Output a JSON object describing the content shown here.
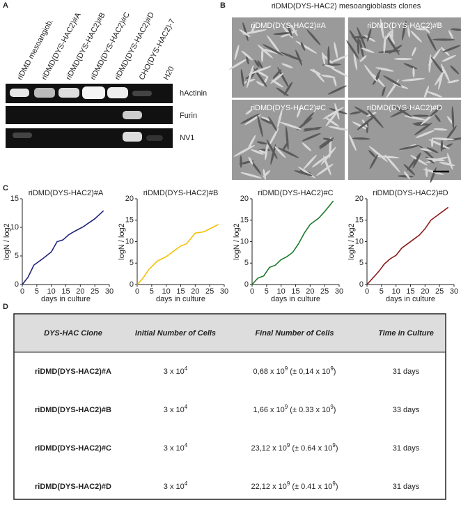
{
  "panel_labels": [
    "A",
    "B",
    "C",
    "D"
  ],
  "panel_a": {
    "lanes": [
      "riDMD mesoangiob.",
      "riDMD(DYS-HAC2)#A",
      "riDMD(DYS-HAC2)#B",
      "riDMD(DYS-HAC2)#C",
      "riDMD(DYS-HAC2)#D",
      "CHO(DYS-HAC2)-7",
      "H20"
    ],
    "bands": [
      "hActinin",
      "Furin",
      "NV1"
    ]
  },
  "panel_b": {
    "title": "riDMD(DYS-HAC2) mesoangioblasts clones",
    "clones": [
      "riDMD(DYS-HAC2)#A",
      "riDMD(DYS-HAC2)#B",
      "riDMD(DYS-HAC2)#C",
      "riDMD(DYS-HAC2)#D"
    ]
  },
  "chart_data": [
    {
      "type": "line",
      "title": "riDMD(DYS-HAC2)#A",
      "xlabel": "days in culture",
      "ylabel": "logN / log2",
      "color": "#1f237a",
      "x": [
        0,
        2,
        4,
        7,
        10,
        12,
        14,
        16,
        18,
        21,
        23,
        25,
        28
      ],
      "values": [
        0,
        1.3,
        3.4,
        4.5,
        5.7,
        7.5,
        7.8,
        8.7,
        9.3,
        10.1,
        10.8,
        11.5,
        12.9
      ],
      "xlim": [
        0,
        30
      ],
      "ylim": [
        0,
        15
      ],
      "xticks": [
        0,
        5,
        10,
        15,
        20,
        25,
        30
      ],
      "yticks": [
        0,
        5,
        10,
        15
      ]
    },
    {
      "type": "line",
      "title": "riDMD(DYS-HAC2)#B",
      "xlabel": "days in culture",
      "ylabel": "logN / log2",
      "color": "#f2c200",
      "x": [
        0,
        2,
        4,
        7,
        10,
        12,
        15,
        17,
        20,
        23,
        28
      ],
      "values": [
        0,
        1.5,
        3.5,
        5.5,
        6.5,
        7.5,
        9,
        9.5,
        12,
        12.3,
        14
      ],
      "xlim": [
        0,
        30
      ],
      "ylim": [
        0,
        20
      ],
      "xticks": [
        0,
        5,
        10,
        15,
        20,
        25,
        30
      ],
      "yticks": [
        0,
        5,
        10,
        15,
        20
      ]
    },
    {
      "type": "line",
      "title": "riDMD(DYS-HAC2)#C",
      "xlabel": "days in culture",
      "ylabel": "logN / log2",
      "color": "#1a7a2a",
      "x": [
        0,
        2,
        4,
        6,
        8,
        10,
        12,
        14,
        16,
        18,
        20,
        23,
        25,
        28
      ],
      "values": [
        0,
        1.5,
        2,
        4,
        4.5,
        5.8,
        6.5,
        7.5,
        9.5,
        12,
        14,
        15.5,
        17,
        19.5
      ],
      "xlim": [
        0,
        30
      ],
      "ylim": [
        0,
        20
      ],
      "xticks": [
        0,
        5,
        10,
        15,
        20,
        25,
        30
      ],
      "yticks": [
        0,
        5,
        10,
        15,
        20
      ]
    },
    {
      "type": "line",
      "title": "riDMD(DYS-HAC2)#D",
      "xlabel": "days in culture",
      "ylabel": "logN / log2",
      "color": "#8b1a1a",
      "x": [
        0,
        2,
        4,
        6,
        8,
        10,
        12,
        14,
        16,
        18,
        20,
        22,
        24,
        26,
        28
      ],
      "values": [
        0,
        1.5,
        3,
        4.8,
        6,
        6.8,
        8.5,
        9.5,
        10.5,
        11.5,
        13,
        15,
        16,
        17,
        18
      ],
      "xlim": [
        0,
        30
      ],
      "ylim": [
        0,
        20
      ],
      "xticks": [
        0,
        5,
        10,
        15,
        20,
        25,
        30
      ],
      "yticks": [
        0,
        5,
        10,
        15,
        20
      ]
    }
  ],
  "panel_d": {
    "header": [
      "DYS-HAC Clone",
      "Initial Number of Cells",
      "Final Number of Cells",
      "Time in Culture"
    ],
    "rows": [
      [
        "riDMD(DYS-HAC2)#A",
        [
          "3 x 10",
          "4"
        ],
        [
          "0,68 x 10",
          "9",
          " (± 0,14 x 10",
          "9",
          ")"
        ],
        "31 days"
      ],
      [
        "riDMD(DYS-HAC2)#B",
        [
          "3 x 10",
          "4"
        ],
        [
          "1,66 x 10",
          "9",
          " (± 0.33 x 10",
          "9",
          ")"
        ],
        "33 days"
      ],
      [
        "riDMD(DYS-HAC2)#C",
        [
          "3 x 10",
          "4"
        ],
        [
          "23,12 x 10",
          "9",
          " (± 0.64 x 10",
          "9",
          ")"
        ],
        "31 days"
      ],
      [
        "riDMD(DYS-HAC2)#D",
        [
          "3 x 10",
          "4"
        ],
        [
          "22,12 x 10",
          "9",
          " (± 0.41 x 10",
          "9",
          ")"
        ],
        "31 days"
      ]
    ]
  }
}
